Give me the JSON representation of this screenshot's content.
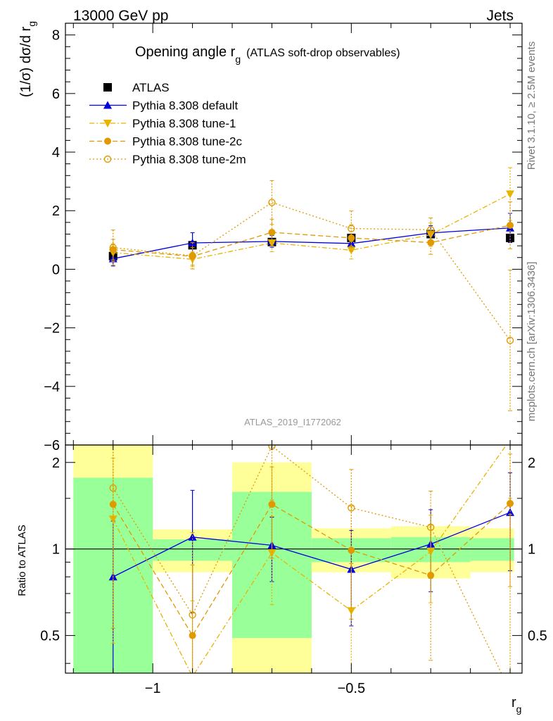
{
  "header": {
    "left": "13000 GeV pp",
    "right": "Jets",
    "side_top": "Rivet 3.1.10, ≥ 2.5M events",
    "side_bottom": "mcplots.cern.ch [arXiv:1306.3436]",
    "analysis_id": "ATLAS_2019_I1772062"
  },
  "chart_data": [
    {
      "type": "line",
      "panel": "main",
      "title": "Opening angle r",
      "title_sub": "g",
      "title_suffix": "(ATLAS soft-drop observables)",
      "ylabel": "(1/σ) dσ/d r",
      "ylabel_sub": "g",
      "xlim": [
        -1.22,
        -0.07
      ],
      "ylim": [
        -6,
        8.4
      ],
      "yticks": [
        -6,
        -4,
        -2,
        0,
        2,
        4,
        6,
        8
      ],
      "ytick_labels": [
        "−6",
        "−4",
        "−2",
        "0",
        "2",
        "4",
        "6",
        "8"
      ],
      "legend_position": "top-left",
      "series": [
        {
          "name": "ATLAS",
          "color": "#000000",
          "marker": "square",
          "line": "none",
          "x": [
            -1.1,
            -0.9,
            -0.7,
            -0.5,
            -0.3,
            -0.1
          ],
          "y": [
            0.45,
            0.82,
            0.93,
            1.07,
            1.2,
            1.07
          ]
        },
        {
          "name": "Pythia 8.308 default",
          "color": "#0000dd",
          "marker": "triangle-up",
          "line": "solid",
          "x": [
            -1.1,
            -0.9,
            -0.7,
            -0.5,
            -0.3,
            -0.1
          ],
          "y": [
            0.36,
            0.9,
            0.95,
            0.88,
            1.24,
            1.41
          ],
          "err": [
            0.25,
            0.35,
            0.2,
            0.2,
            0.25,
            0.5
          ]
        },
        {
          "name": "Pythia 8.308 tune-1",
          "color": "#e8b400",
          "marker": "triangle-down",
          "line": "dashdot",
          "x": [
            -1.1,
            -0.9,
            -0.7,
            -0.5,
            -0.3,
            -0.1
          ],
          "y": [
            0.57,
            0.34,
            0.9,
            0.65,
            1.18,
            2.57
          ],
          "err": [
            0.3,
            0.25,
            0.3,
            0.3,
            0.4,
            0.9
          ]
        },
        {
          "name": "Pythia 8.308 tune-2c",
          "color": "#e09a00",
          "marker": "circle",
          "line": "dashed",
          "x": [
            -1.1,
            -0.9,
            -0.7,
            -0.5,
            -0.3,
            -0.1
          ],
          "y": [
            0.67,
            0.44,
            1.26,
            1.07,
            0.91,
            1.5
          ],
          "err": [
            0.35,
            0.3,
            0.45,
            0.45,
            0.4,
            0.8
          ]
        },
        {
          "name": "Pythia 8.308 tune-2m",
          "color": "#e09a00",
          "marker": "circle-open",
          "line": "dotted",
          "x": [
            -1.1,
            -0.9,
            -0.7,
            -0.5,
            -0.3,
            -0.1
          ],
          "y": [
            0.74,
            0.46,
            2.28,
            1.39,
            1.35,
            -2.43
          ],
          "err": [
            0.6,
            0.45,
            0.75,
            0.6,
            0.4,
            2.4
          ]
        }
      ]
    },
    {
      "type": "line",
      "panel": "ratio",
      "ylabel": "Ratio to ATLAS",
      "xlabel": "r",
      "xlabel_sub": "g",
      "xlim": [
        -1.22,
        -0.07
      ],
      "yscale": "log",
      "ylim": [
        0.37,
        2.3
      ],
      "yticks": [
        0.5,
        1,
        2
      ],
      "ytick_labels": [
        "0.5",
        "1",
        "2"
      ],
      "xticks": [
        -1,
        -0.5
      ],
      "xtick_labels": [
        "−1",
        "−0.5"
      ],
      "reference_line": 1,
      "bands": [
        {
          "x0": -1.2,
          "x1": -1.0,
          "inner": [
            0.37,
            1.77
          ],
          "outer": [
            0.37,
            2.3
          ]
        },
        {
          "x0": -1.0,
          "x1": -0.8,
          "inner": [
            0.91,
            1.08
          ],
          "outer": [
            0.83,
            1.17
          ]
        },
        {
          "x0": -0.8,
          "x1": -0.6,
          "inner": [
            0.49,
            1.58
          ],
          "outer": [
            0.37,
            2.0
          ]
        },
        {
          "x0": -0.6,
          "x1": -0.4,
          "inner": [
            0.9,
            1.09
          ],
          "outer": [
            0.83,
            1.18
          ]
        },
        {
          "x0": -0.4,
          "x1": -0.2,
          "inner": [
            0.9,
            1.1
          ],
          "outer": [
            0.79,
            1.2
          ]
        },
        {
          "x0": -0.2,
          "x1": -0.09,
          "inner": [
            0.91,
            1.09
          ],
          "outer": [
            0.83,
            1.18
          ]
        }
      ],
      "series": [
        {
          "name": "Pythia 8.308 default",
          "color": "#0000dd",
          "marker": "triangle-up",
          "line": "solid",
          "x": [
            -1.1,
            -0.9,
            -0.7,
            -0.5,
            -0.3,
            -0.1
          ],
          "y": [
            0.8,
            1.1,
            1.03,
            0.85,
            1.04,
            1.34
          ],
          "err": [
            0.45,
            0.5,
            0.26,
            0.31,
            0.33,
            0.5
          ]
        },
        {
          "name": "Pythia 8.308 tune-1",
          "color": "#e8b400",
          "marker": "triangle-down",
          "line": "dashdot",
          "x": [
            -1.1,
            -0.9,
            -0.7,
            -0.5,
            -0.3,
            -0.1
          ],
          "y": [
            1.27,
            0.36,
            0.97,
            0.61,
            0.98,
            2.4
          ],
          "err": [
            0.8,
            0.3,
            0.33,
            0.28,
            0.33,
            0.9
          ]
        },
        {
          "name": "Pythia 8.308 tune-2c",
          "color": "#e09a00",
          "marker": "circle",
          "line": "dashed",
          "x": [
            -1.1,
            -0.9,
            -0.7,
            -0.5,
            -0.3,
            -0.1
          ],
          "y": [
            1.43,
            0.5,
            1.43,
            0.99,
            0.81,
            1.44
          ],
          "err": [
            0.9,
            0.38,
            0.5,
            0.42,
            0.4,
            0.7
          ]
        },
        {
          "name": "Pythia 8.308 tune-2m",
          "color": "#e09a00",
          "marker": "circle-open",
          "line": "dotted",
          "x": [
            -1.1,
            -0.9,
            -0.7,
            -0.5,
            -0.3,
            -0.1
          ],
          "y": [
            1.63,
            0.59,
            2.28,
            1.39,
            1.19,
            0.32
          ],
          "err": [
            1.1,
            0.55,
            0.8,
            0.5,
            0.4,
            1.0
          ]
        }
      ]
    }
  ]
}
